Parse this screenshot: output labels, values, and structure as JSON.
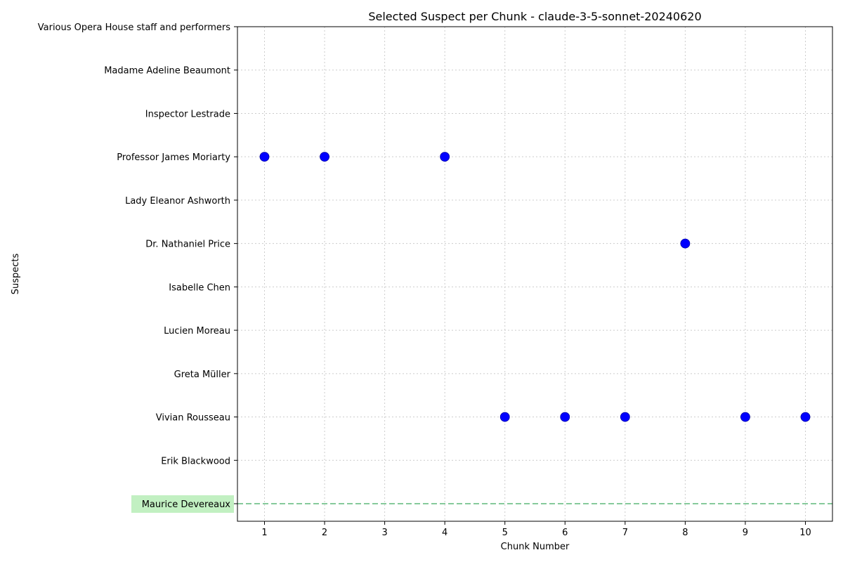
{
  "chart_data": {
    "type": "scatter",
    "title": "Selected Suspect per Chunk - claude-3-5-sonnet-20240620",
    "xlabel": "Chunk Number",
    "ylabel": "Suspects",
    "x_ticks": [
      1,
      2,
      3,
      4,
      5,
      6,
      7,
      8,
      9,
      10
    ],
    "xlim": [
      0.55,
      10.45
    ],
    "categories": [
      "Maurice Devereaux",
      "Erik Blackwood",
      "Vivian Rousseau",
      "Greta Müller",
      "Lucien Moreau",
      "Isabelle Chen",
      "Dr. Nathaniel Price",
      "Lady Eleanor Ashworth",
      "Professor James Moriarty",
      "Inspector Lestrade",
      "Madame Adeline Beaumont",
      "Various Opera House staff and performers"
    ],
    "points": [
      {
        "x": 1,
        "y": "Professor James Moriarty"
      },
      {
        "x": 2,
        "y": "Professor James Moriarty"
      },
      {
        "x": 4,
        "y": "Professor James Moriarty"
      },
      {
        "x": 5,
        "y": "Vivian Rousseau"
      },
      {
        "x": 6,
        "y": "Vivian Rousseau"
      },
      {
        "x": 7,
        "y": "Vivian Rousseau"
      },
      {
        "x": 8,
        "y": "Dr. Nathaniel Price"
      },
      {
        "x": 9,
        "y": "Vivian Rousseau"
      },
      {
        "x": 10,
        "y": "Vivian Rousseau"
      }
    ],
    "highlighted_category": "Maurice Devereaux",
    "grid": true,
    "colors": {
      "point": "#0000ff",
      "reference_line": "#5fb87a",
      "highlight_background": "#c2f0c2",
      "grid": "#cccccc"
    }
  }
}
